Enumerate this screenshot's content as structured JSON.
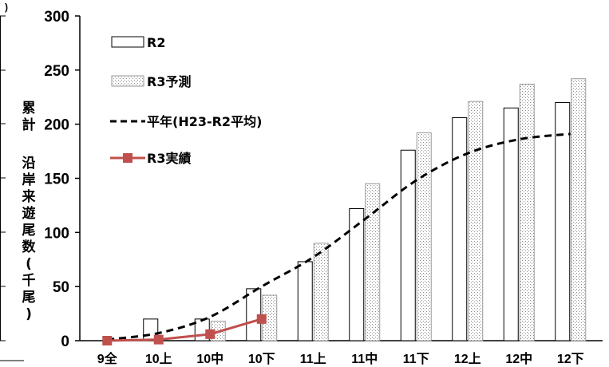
{
  "chart_data": {
    "type": "bar",
    "categories": [
      "9全",
      "10上",
      "10中",
      "10下",
      "11上",
      "11中",
      "11下",
      "12上",
      "12中",
      "12下"
    ],
    "ylim": [
      0,
      300
    ],
    "yticks": [
      0,
      50,
      100,
      150,
      200,
      250,
      300
    ],
    "ylabel_top": "累計",
    "ylabel_main": "沿岸来遊尾数(千尾)",
    "clipped_text": ")",
    "series": [
      {
        "name": "R2",
        "type": "bar",
        "pattern": "white",
        "values": [
          0,
          20,
          20,
          48,
          73,
          122,
          176,
          206,
          215,
          220
        ]
      },
      {
        "name": "R3予測",
        "type": "bar",
        "pattern": "dotted",
        "values": [
          null,
          null,
          18,
          42,
          90,
          145,
          192,
          221,
          237,
          242
        ]
      },
      {
        "name": "平年(H23-R2平均)",
        "type": "line",
        "style": "dashed",
        "values": [
          1,
          7,
          22,
          50,
          77,
          112,
          148,
          173,
          186,
          191
        ]
      },
      {
        "name": "R3実績",
        "type": "line",
        "color": "#c0504d",
        "marker": "square",
        "values": [
          0,
          1,
          6,
          20,
          null,
          null,
          null,
          null,
          null,
          null
        ]
      }
    ]
  }
}
